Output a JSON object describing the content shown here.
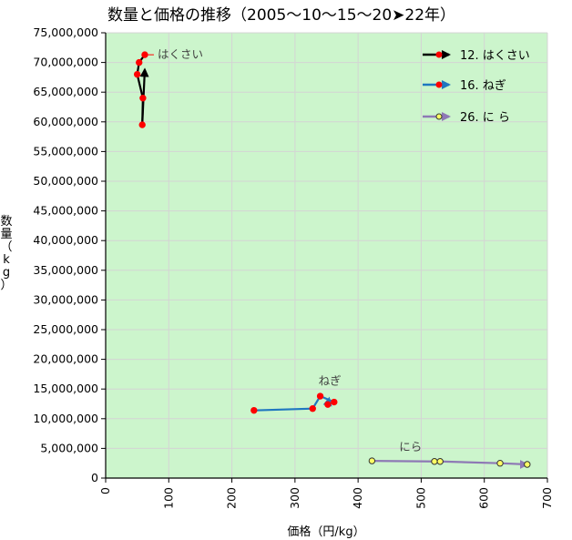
{
  "chart_data": {
    "type": "scatter",
    "title": "数量と価格の推移（2005〜10〜15〜20➤22年）",
    "xlabel": "価格（円/kg）",
    "ylabel": "数量（kg）",
    "xlim": [
      0,
      700
    ],
    "ylim": [
      0,
      75000000
    ],
    "x_ticks": [
      "0",
      "100",
      "200",
      "300",
      "400",
      "500",
      "600",
      "700"
    ],
    "y_ticks": [
      "0",
      "5,000,000",
      "10,000,000",
      "15,000,000",
      "20,000,000",
      "25,000,000",
      "30,000,000",
      "35,000,000",
      "40,000,000",
      "45,000,000",
      "50,000,000",
      "55,000,000",
      "60,000,000",
      "65,000,000",
      "70,000,000",
      "75,000,000"
    ],
    "grid": true,
    "legend_position": "top-right",
    "series": [
      {
        "name": "12. はくさい",
        "annotation": "はくさい",
        "line_color": "#000000",
        "marker_color": "#ff0000",
        "x": [
          62,
          53,
          50,
          59,
          58,
          62
        ],
        "y": [
          71300000,
          70000000,
          68000000,
          64000000,
          59500000,
          68800000
        ]
      },
      {
        "name": "16. ねぎ",
        "annotation": "ねぎ",
        "line_color": "#1f77c0",
        "marker_color": "#ff0000",
        "x": [
          235,
          328,
          340,
          362,
          352,
          354
        ],
        "y": [
          11400000,
          11700000,
          13800000,
          12800000,
          12400000,
          13400000
        ]
      },
      {
        "name": "26. に ら",
        "annotation": "にら",
        "line_color": "#8e79b5",
        "marker_color": "#ffff66",
        "x": [
          422,
          521,
          530,
          625,
          668,
          668
        ],
        "y": [
          2900000,
          2800000,
          2800000,
          2500000,
          2300000,
          2300000
        ]
      }
    ]
  },
  "colors": {
    "plot_background": "#ccf5cc",
    "grid": "#d4d4d4"
  }
}
